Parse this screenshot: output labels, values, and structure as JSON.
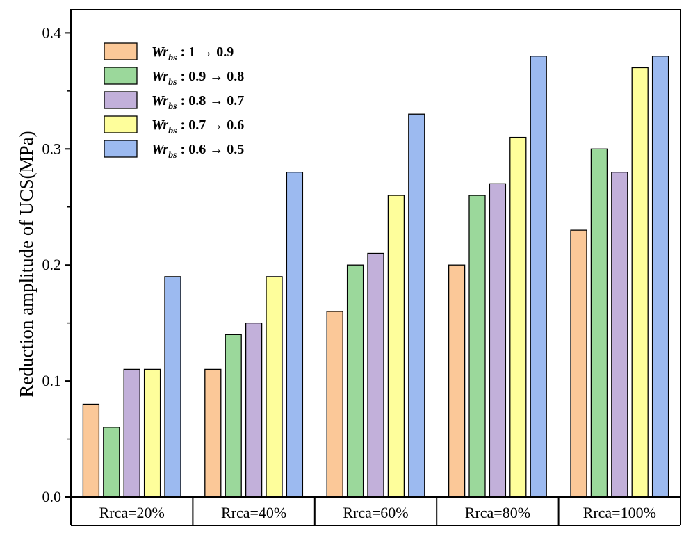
{
  "chart_data": {
    "type": "bar",
    "title": "",
    "xlabel": "",
    "ylabel": "Reduction amplitude of UCS(MPa)",
    "ylim": [
      0.0,
      0.4
    ],
    "yticks": [
      "0.0",
      "0.1",
      "0.2",
      "0.3",
      "0.4"
    ],
    "categories": [
      "Rrca=20%",
      "Rrca=40%",
      "Rrca=60%",
      "Rrca=80%",
      "Rrca=100%"
    ],
    "legend_position": "top-left",
    "grid": false,
    "series": [
      {
        "name": "Wr_bs :  1 → 0.9",
        "legend_prefix": "Wr",
        "legend_sub": "bs",
        "legend_rest": " :   1 → 0.9",
        "color": "#FBC898",
        "values": [
          0.08,
          0.11,
          0.16,
          0.2,
          0.23
        ]
      },
      {
        "name": "Wr_bs : 0.9 → 0.8",
        "legend_prefix": "Wr",
        "legend_sub": "bs",
        "legend_rest": " : 0.9 → 0.8",
        "color": "#9BD89B",
        "values": [
          0.06,
          0.14,
          0.2,
          0.26,
          0.3
        ]
      },
      {
        "name": "Wr_bs : 0.8 → 0.7",
        "legend_prefix": "Wr",
        "legend_sub": "bs",
        "legend_rest": " : 0.8 → 0.7",
        "color": "#C2B0DA",
        "values": [
          0.11,
          0.15,
          0.21,
          0.27,
          0.28
        ]
      },
      {
        "name": "Wr_bs : 0.7 → 0.6",
        "legend_prefix": "Wr",
        "legend_sub": "bs",
        "legend_rest": " : 0.7 → 0.6",
        "color": "#FEFE9B",
        "values": [
          0.11,
          0.19,
          0.26,
          0.31,
          0.37
        ]
      },
      {
        "name": "Wr_bs : 0.6 → 0.5",
        "legend_prefix": "Wr",
        "legend_sub": "bs",
        "legend_rest": " : 0.6 → 0.5",
        "color": "#9CBAF0",
        "values": [
          0.19,
          0.28,
          0.33,
          0.38,
          0.38
        ]
      }
    ]
  }
}
